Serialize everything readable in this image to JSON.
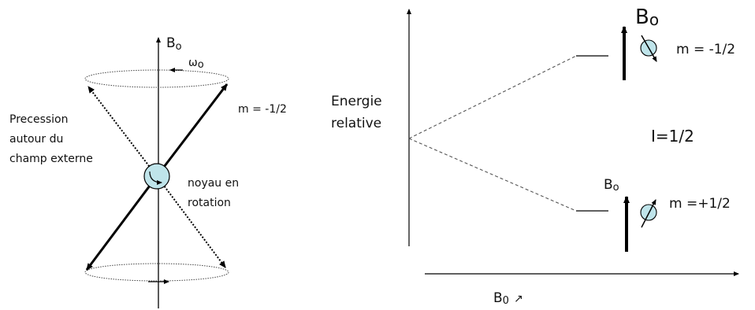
{
  "left": {
    "axis_label": "B",
    "axis_sub": "o",
    "omega_label": "ω",
    "omega_sub": "o",
    "spin_label": "m = -1/2",
    "precession_lines": [
      "Precession",
      "autour du",
      "champ externe"
    ],
    "nucleus_lines": [
      "noyau en",
      "rotation"
    ]
  },
  "right": {
    "y_label_lines": [
      "Energie",
      "relative"
    ],
    "x_label": "B",
    "x_sub": "0",
    "x_arrow": "↗",
    "spin_number": "I=1/2",
    "upper_level": {
      "field_label": "B",
      "field_sub": "o",
      "m_label": "m = -1/2"
    },
    "lower_level": {
      "field_label": "B",
      "field_sub": "o",
      "m_label": "m =+1/2"
    }
  },
  "colors": {
    "nucleus": "#bfe4ea",
    "stroke": "#000000",
    "dashed": "#555555"
  }
}
